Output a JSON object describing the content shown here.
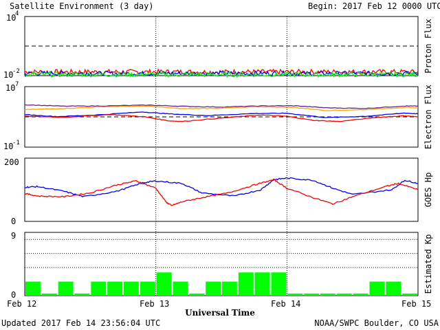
{
  "header": {
    "title": "Satellite Environment (3 day)",
    "begin_label": "Begin:",
    "begin_value": "2017 Feb 12 0000 UTC"
  },
  "footer": {
    "updated": "Updated 2017 Feb 14 23:56:04 UTC",
    "credit": "NOAA/SWPC Boulder, CO USA"
  },
  "xaxis": {
    "title": "Universal Time",
    "ticks": [
      "Feb 12",
      "Feb 13",
      "Feb 14",
      "Feb 15"
    ],
    "range_days": [
      0,
      3
    ]
  },
  "colors": {
    "red": "#ff0000",
    "blue": "#0000ff",
    "green": "#00ff00",
    "orange": "#ffa500",
    "purple": "#6b1f8f",
    "kp_bar": "#00ff00"
  },
  "chart_data": [
    {
      "type": "line",
      "panel": "proton",
      "ylabel": "Proton Flux",
      "yscale": "log",
      "ylim": [
        0.01,
        10000
      ],
      "ytick_labels": {
        "top": "10",
        "top_exp": "4",
        "bottom": "10",
        "bottom_exp": "-2"
      },
      "threshold": 10,
      "series": [
        {
          "color": "red",
          "level": 0.024,
          "noise": 0.25
        },
        {
          "color": "blue",
          "level": 0.017,
          "noise": 0.22
        },
        {
          "color": "green",
          "level": 0.013,
          "noise": 0.25
        }
      ]
    },
    {
      "type": "line",
      "panel": "electron",
      "ylabel": "Electron Flux",
      "yscale": "log",
      "ylim": [
        0.1,
        10000000
      ],
      "ytick_labels": {
        "top": "10",
        "top_exp": "7",
        "bottom": "10",
        "bottom_exp": "-1"
      },
      "threshold": 1000,
      "series": [
        {
          "color": "purple",
          "x": [
            0,
            0.3,
            0.6,
            0.95,
            1.2,
            1.5,
            1.8,
            2.05,
            2.3,
            2.6,
            2.9,
            3.0
          ],
          "y": [
            40000,
            26000,
            28000,
            36000,
            25000,
            20000,
            28000,
            30000,
            16000,
            13000,
            28000,
            26000
          ]
        },
        {
          "color": "orange",
          "x": [
            0,
            0.3,
            0.6,
            0.95,
            1.2,
            1.5,
            1.8,
            2.05,
            2.3,
            2.6,
            2.9,
            3.0
          ],
          "y": [
            9000,
            13000,
            22000,
            26000,
            12000,
            14000,
            22000,
            18000,
            7000,
            9000,
            18000,
            15000
          ]
        },
        {
          "color": "blue",
          "x": [
            0,
            0.25,
            0.55,
            0.9,
            1.1,
            1.4,
            1.75,
            2.0,
            2.3,
            2.6,
            2.9,
            3.0
          ],
          "y": [
            2000,
            1100,
            1800,
            4500,
            2500,
            1500,
            2800,
            3000,
            800,
            1200,
            3200,
            2500
          ]
        },
        {
          "color": "red",
          "x": [
            0,
            0.3,
            0.65,
            0.9,
            1.1,
            1.2,
            1.5,
            1.8,
            2.0,
            2.2,
            2.4,
            2.7,
            2.9,
            3.0
          ],
          "y": [
            1200,
            900,
            2000,
            1100,
            300,
            250,
            700,
            1800,
            1200,
            350,
            250,
            900,
            1400,
            1000
          ]
        }
      ]
    },
    {
      "type": "line",
      "panel": "goes_hp",
      "ylabel": "GOES Hp",
      "ylim": [
        0,
        200
      ],
      "yticks": [
        0,
        200
      ],
      "series": [
        {
          "color": "blue",
          "x": [
            0,
            0.1,
            0.3,
            0.45,
            0.7,
            0.9,
            1.0,
            1.2,
            1.35,
            1.6,
            1.8,
            1.9,
            2.0,
            2.2,
            2.35,
            2.5,
            2.8,
            2.9,
            3.0
          ],
          "y": [
            108,
            110,
            95,
            78,
            95,
            122,
            128,
            120,
            90,
            80,
            100,
            132,
            137,
            130,
            105,
            85,
            100,
            130,
            120
          ]
        },
        {
          "color": "red",
          "x": [
            0,
            0.1,
            0.3,
            0.5,
            0.7,
            0.85,
            1.0,
            1.08,
            1.12,
            1.2,
            1.35,
            1.55,
            1.75,
            1.9,
            2.0,
            2.2,
            2.35,
            2.5,
            2.75,
            2.85,
            3.0
          ],
          "y": [
            88,
            80,
            78,
            90,
            115,
            128,
            105,
            60,
            50,
            62,
            75,
            90,
            115,
            132,
            105,
            75,
            55,
            78,
            110,
            120,
            100
          ]
        }
      ]
    },
    {
      "type": "bar",
      "panel": "kp",
      "ylabel": "Estimated Kp",
      "ylim": [
        0,
        9
      ],
      "ytick_labels": {
        "top": "9",
        "bottom": "0"
      },
      "grid_levels": [
        4,
        6,
        8,
        9
      ],
      "bin_hours": 3,
      "values": [
        2,
        0.3,
        2,
        0.3,
        2,
        2,
        2,
        2,
        3.3,
        2,
        0.3,
        2,
        2,
        3.3,
        3.3,
        3.3,
        0.3,
        0.3,
        0.3,
        0.3,
        0.3,
        2,
        2,
        0.3
      ]
    }
  ]
}
